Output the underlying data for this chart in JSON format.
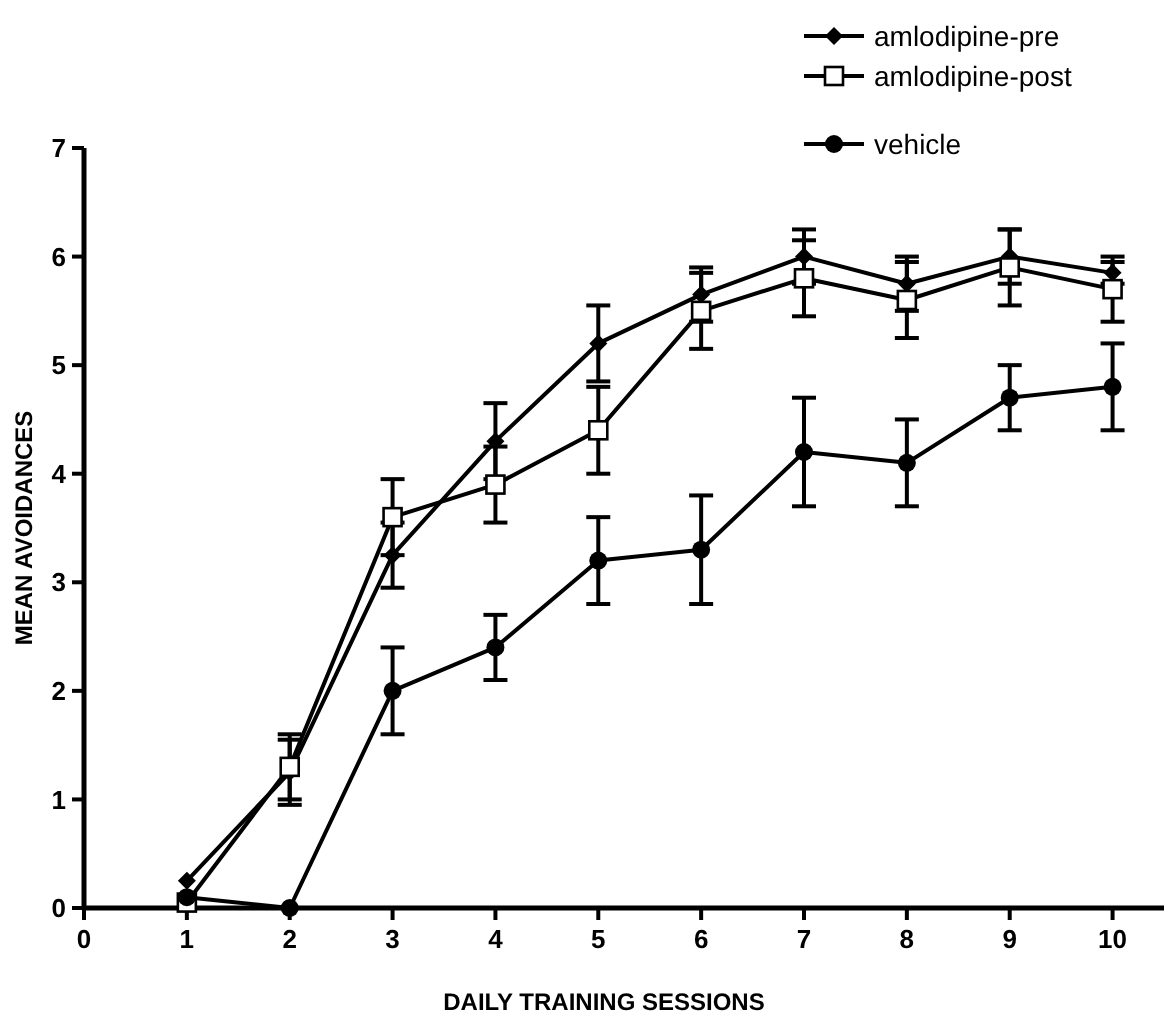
{
  "chart_data": {
    "type": "line",
    "xlabel": "DAILY TRAINING SESSIONS",
    "ylabel": "MEAN AVOIDANCES",
    "x": [
      1,
      2,
      3,
      4,
      5,
      6,
      7,
      8,
      9,
      10
    ],
    "xlim": [
      0,
      10.5
    ],
    "xticks": [
      0,
      1,
      2,
      3,
      4,
      5,
      6,
      7,
      8,
      9,
      10
    ],
    "ylim": [
      0,
      7
    ],
    "yticks": [
      0,
      1,
      2,
      3,
      4,
      5,
      6,
      7
    ],
    "grid": false,
    "legend": "top right",
    "series": [
      {
        "name": "amlodipine-pre",
        "color": "#000000",
        "marker": "diamond",
        "values": [
          0.25,
          1.25,
          3.25,
          4.3,
          5.2,
          5.65,
          6.0,
          5.75,
          6.0,
          5.85
        ],
        "errors": [
          null,
          0.3,
          0.3,
          0.35,
          0.35,
          0.25,
          0.25,
          0.25,
          0.25,
          0.1
        ]
      },
      {
        "name": "amlodipine-post",
        "color": "#000000",
        "marker": "square",
        "values": [
          0.05,
          1.3,
          3.6,
          3.9,
          4.4,
          5.5,
          5.8,
          5.6,
          5.9,
          5.7
        ],
        "errors": [
          null,
          0.3,
          0.35,
          0.35,
          0.4,
          0.35,
          0.35,
          0.35,
          0.35,
          0.3
        ]
      },
      {
        "name": "vehicle",
        "color": "#000000",
        "marker": "circle",
        "values": [
          0.1,
          0,
          2.0,
          2.4,
          3.2,
          3.3,
          4.2,
          4.1,
          4.7,
          4.8
        ],
        "errors": [
          null,
          null,
          0.4,
          0.3,
          0.4,
          0.5,
          0.5,
          0.4,
          0.3,
          0.4
        ]
      }
    ]
  }
}
